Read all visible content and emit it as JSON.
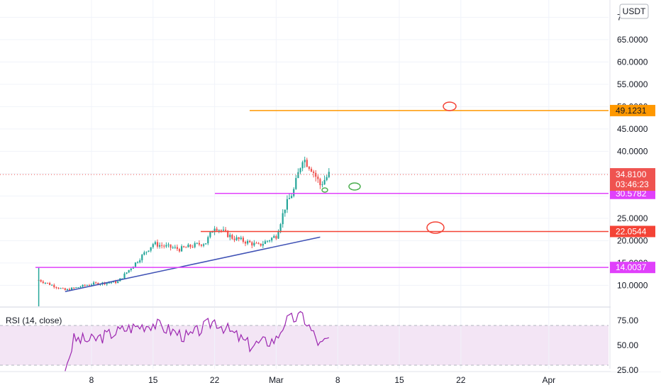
{
  "chart_data": [
    {
      "type": "candlestick",
      "currency_label": "USDT",
      "x_axis": {
        "tick_labels": [
          {
            "label": "8",
            "date": "2021-02-08"
          },
          {
            "label": "15",
            "date": "2021-02-15"
          },
          {
            "label": "22",
            "date": "2021-02-22"
          },
          {
            "label": "Mar",
            "date": "2021-03-01"
          },
          {
            "label": "8",
            "date": "2021-03-08"
          },
          {
            "label": "15",
            "date": "2021-03-15"
          },
          {
            "label": "22",
            "date": "2021-03-22"
          },
          {
            "label": "Apr",
            "date": "2021-04-01"
          }
        ]
      },
      "y_axis": {
        "tick_labels": [
          "10.0000",
          "15.0000",
          "20.0000",
          "25.0000",
          "30.0000",
          "35.0000",
          "40.0000",
          "45.0000",
          "50.0000",
          "55.0000",
          "60.0000",
          "65.0000",
          "7"
        ],
        "ylim": [
          5.6,
          72.2
        ]
      },
      "price_series": {
        "approx_close": [
          {
            "date": "2021-02-02",
            "close": 11.2
          },
          {
            "date": "2021-02-05",
            "close": 8.9
          },
          {
            "date": "2021-02-08",
            "close": 10.3
          },
          {
            "date": "2021-02-11",
            "close": 10.8
          },
          {
            "date": "2021-02-13",
            "close": 15.0
          },
          {
            "date": "2021-02-15",
            "close": 19.3
          },
          {
            "date": "2021-02-18",
            "close": 18.1
          },
          {
            "date": "2021-02-21",
            "close": 19.6
          },
          {
            "date": "2021-02-22",
            "close": 23.2
          },
          {
            "date": "2021-02-24",
            "close": 20.7
          },
          {
            "date": "2021-02-27",
            "close": 18.9
          },
          {
            "date": "2021-03-01",
            "close": 21.1
          },
          {
            "date": "2021-03-02",
            "close": 27.5
          },
          {
            "date": "2021-03-03",
            "close": 31.3
          },
          {
            "date": "2021-03-04",
            "close": 38.6
          },
          {
            "date": "2021-03-05",
            "close": 36.3
          },
          {
            "date": "2021-03-06",
            "close": 32.5
          },
          {
            "date": "2021-03-07",
            "close": 34.81
          }
        ]
      },
      "horizontal_levels": [
        {
          "value": 49.1231,
          "label": "49.1231",
          "color": "#ff9800",
          "tag_text_color": "#131722"
        },
        {
          "value": 30.5782,
          "label": "30.5782",
          "color": "#e040fb",
          "tag_text_color": "#ffffff"
        },
        {
          "value": 22.0544,
          "label": "22.0544",
          "color": "#f44336",
          "tag_text_color": "#ffffff"
        },
        {
          "value": 14.0037,
          "label": "14.0037",
          "color": "#e040fb",
          "tag_text_color": "#ffffff"
        }
      ],
      "current_price": {
        "value": 34.81,
        "label": "34.8100",
        "countdown": "03:46:23",
        "color": "#ef5350"
      },
      "trend_line": {
        "color": "#3f51b5",
        "start": {
          "date": "2021-02-05",
          "value": 8.6
        },
        "end": {
          "date": "2021-03-06",
          "value": 20.8
        }
      },
      "colors": {
        "up": "#26a69a",
        "down": "#ef5350"
      }
    },
    {
      "type": "line",
      "title": "RSI (14, close)",
      "y_axis": {
        "tick_labels": [
          "25.00",
          "50.00",
          "75.00"
        ],
        "ylim": [
          22,
          85
        ]
      },
      "bands": {
        "upper": 70,
        "lower": 30,
        "fill": "#f3e5f5"
      },
      "line_color": "#9c27b0",
      "approx_values": [
        {
          "date": "2021-02-05",
          "value": 24
        },
        {
          "date": "2021-02-06",
          "value": 56
        },
        {
          "date": "2021-02-08",
          "value": 55
        },
        {
          "date": "2021-02-12",
          "value": 67
        },
        {
          "date": "2021-02-15",
          "value": 72
        },
        {
          "date": "2021-02-19",
          "value": 58
        },
        {
          "date": "2021-02-22",
          "value": 75
        },
        {
          "date": "2021-02-26",
          "value": 50
        },
        {
          "date": "2021-03-01",
          "value": 56
        },
        {
          "date": "2021-03-02",
          "value": 74
        },
        {
          "date": "2021-03-04",
          "value": 80
        },
        {
          "date": "2021-03-06",
          "value": 50
        },
        {
          "date": "2021-03-07",
          "value": 56
        }
      ]
    }
  ]
}
